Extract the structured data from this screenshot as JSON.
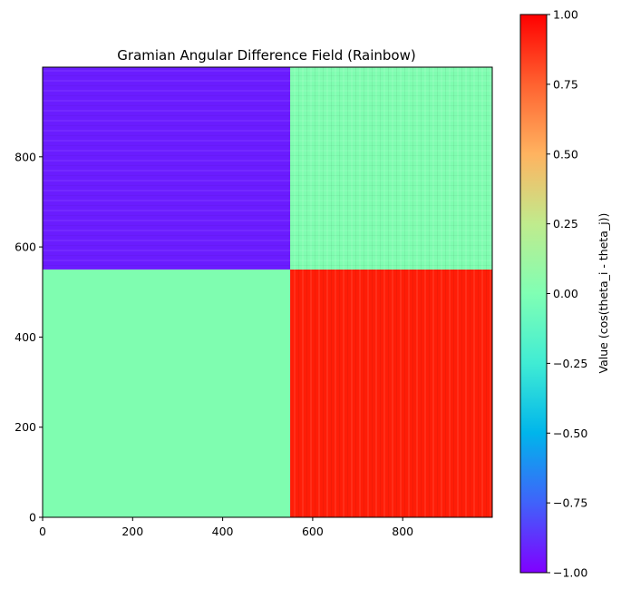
{
  "chart_data": {
    "type": "heatmap",
    "title": "Gramian Angular Difference Field (Rainbow)",
    "xlabel": "",
    "ylabel": "",
    "colormap": "rainbow",
    "xlim": [
      0,
      999
    ],
    "ylim": [
      0,
      999
    ],
    "x_ticks": [
      0,
      200,
      400,
      600,
      800
    ],
    "y_ticks": [
      0,
      200,
      400,
      600,
      800
    ],
    "split_index": 550,
    "regions": [
      {
        "name": "lower-left",
        "x_range": [
          0,
          550
        ],
        "y_range": [
          0,
          550
        ],
        "value": 0.0
      },
      {
        "name": "lower-right",
        "x_range": [
          550,
          999
        ],
        "y_range": [
          0,
          550
        ],
        "value": 1.0
      },
      {
        "name": "upper-left",
        "x_range": [
          0,
          550
        ],
        "y_range": [
          550,
          999
        ],
        "value": -1.0
      },
      {
        "name": "upper-right",
        "x_range": [
          550,
          999
        ],
        "y_range": [
          550,
          999
        ],
        "value": 0.0
      }
    ],
    "colorbar": {
      "label": "Value (cos(theta_i - theta_j))",
      "range": [
        -1.0,
        1.0
      ],
      "ticks": [
        1.0,
        0.75,
        0.5,
        0.25,
        0.0,
        -0.25,
        -0.5,
        -0.75,
        -1.0
      ],
      "tick_labels": [
        "1.00",
        "0.75",
        "0.50",
        "0.25",
        "0.00",
        "−0.25",
        "−0.50",
        "−0.75",
        "−1.00"
      ]
    },
    "grid": false
  }
}
